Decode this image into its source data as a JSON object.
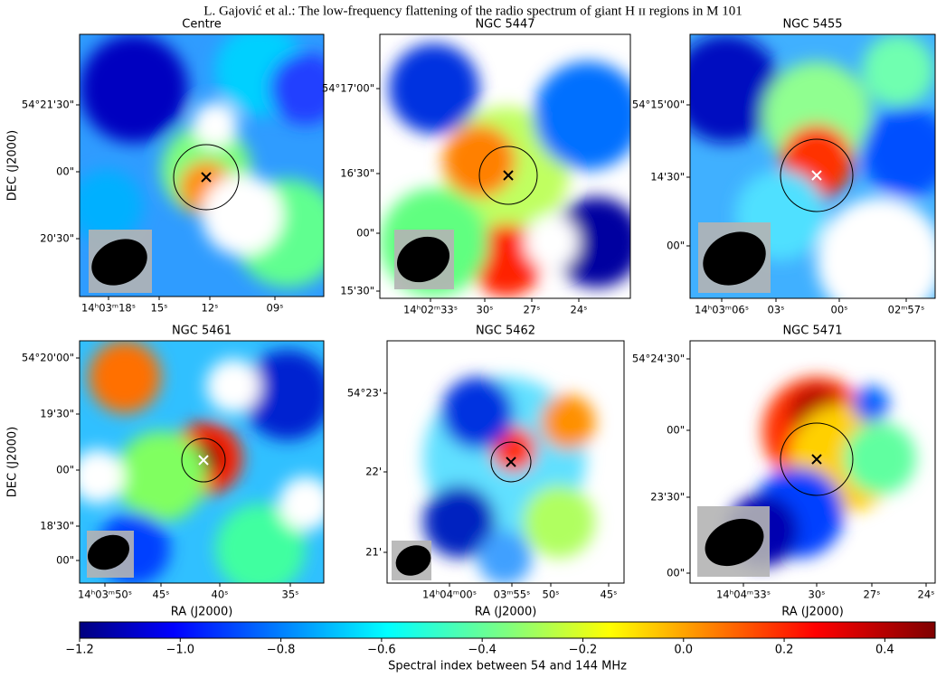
{
  "header": "L. Gajović et al.: The low-frequency flattening of the radio spectrum of giant H ɪɪ regions in M 101",
  "panels": [
    {
      "title": "Centre",
      "ylabel": "DEC (J2000)",
      "yticks": [
        "54°21'30\"",
        "00\"",
        "20'30\""
      ],
      "xticks": [
        "14ʰ03ᵐ18ˢ",
        "15ˢ",
        "12ˢ",
        "09ˢ"
      ]
    },
    {
      "title": "NGC 5447",
      "yticks": [
        "54°17'00\"",
        "16'30\"",
        "00\"",
        "15'30\""
      ],
      "xticks": [
        "14ʰ02ᵐ33ˢ",
        "30ˢ",
        "27ˢ",
        "24ˢ"
      ]
    },
    {
      "title": "NGC 5455",
      "yticks": [
        "54°15'00\"",
        "14'30\"",
        "00\""
      ],
      "xticks": [
        "14ʰ03ᵐ06ˢ",
        "03ˢ",
        "00ˢ",
        "02ᵐ57ˢ"
      ]
    },
    {
      "title": "NGC 5461",
      "ylabel": "DEC (J2000)",
      "xlabel": "RA (J2000)",
      "yticks": [
        "54°20'00\"",
        "19'30\"",
        "00\"",
        "18'30\"",
        "00\""
      ],
      "xticks": [
        "14ʰ03ᵐ50ˢ",
        "45ˢ",
        "40ˢ",
        "35ˢ"
      ]
    },
    {
      "title": "NGC 5462",
      "xlabel": "RA (J2000)",
      "yticks": [
        "54°23'",
        "22'",
        "21'"
      ],
      "xticks": [
        "14ʰ04ᵐ00ˢ",
        "03ᵐ55ˢ",
        "50ˢ",
        "45ˢ"
      ]
    },
    {
      "title": "NGC 5471",
      "xlabel": "RA (J2000)",
      "yticks": [
        "54°24'30\"",
        "00\"",
        "23'30\"",
        "00\""
      ],
      "xticks": [
        "14ʰ04ᵐ33ˢ",
        "30ˢ",
        "27ˢ",
        "24ˢ"
      ]
    }
  ],
  "colorbar": {
    "label": "Spectral index between 54 and 144 MHz",
    "xlim": [
      -1.2,
      0.5
    ],
    "xticks": [
      {
        "value": -1.2,
        "label": "−1.2"
      },
      {
        "value": -1.0,
        "label": "−1.0"
      },
      {
        "value": -0.8,
        "label": "−0.8"
      },
      {
        "value": -0.6,
        "label": "−0.6"
      },
      {
        "value": -0.4,
        "label": "−0.4"
      },
      {
        "value": -0.2,
        "label": "−0.2"
      },
      {
        "value": 0,
        "label": "0.0"
      },
      0.2,
      0.4
    ]
  }
}
